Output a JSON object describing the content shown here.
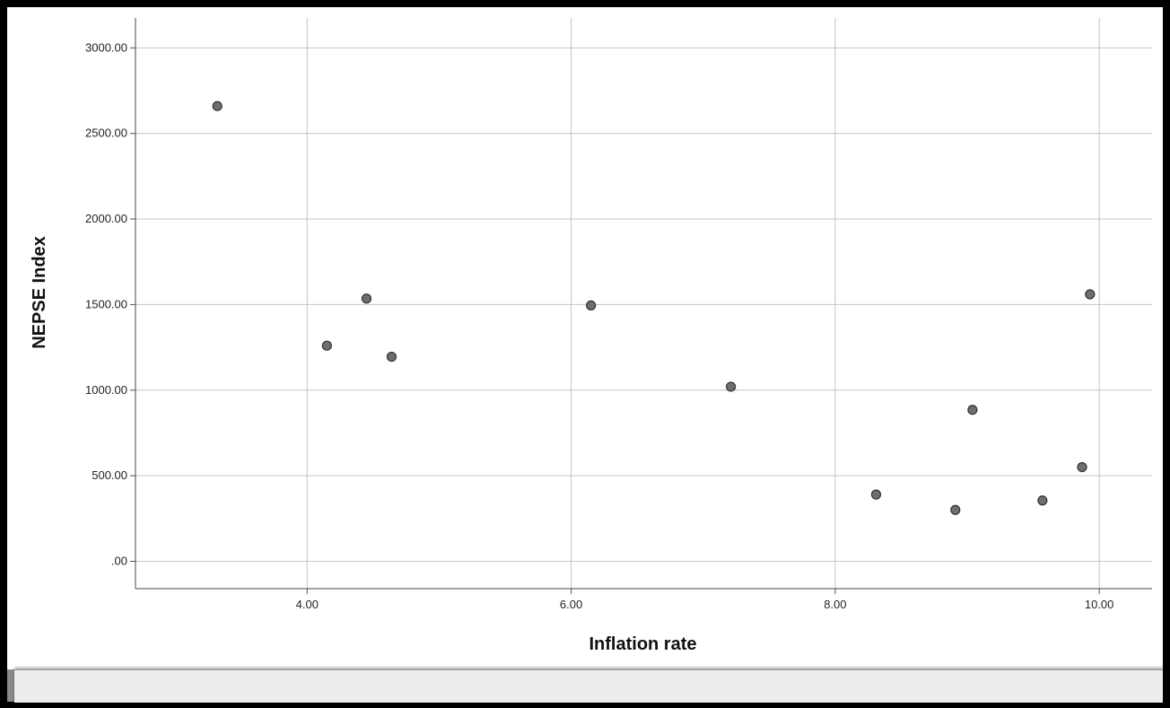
{
  "chart_data": {
    "type": "scatter",
    "title": "",
    "xlabel": "Inflation rate",
    "ylabel": "NEPSE Index",
    "xlim": [
      2.7,
      10.4
    ],
    "ylim": [
      -160,
      3175
    ],
    "xticks": [
      4,
      6,
      8,
      10
    ],
    "xtick_labels": [
      "4.00",
      "6.00",
      "8.00",
      "10.00"
    ],
    "yticks": [
      0,
      500,
      1000,
      1500,
      2000,
      2500,
      3000
    ],
    "ytick_labels": [
      ".00",
      "500.00",
      "1000.00",
      "1500.00",
      "2000.00",
      "2500.00",
      "3000.00"
    ],
    "grid": true,
    "legend": "none",
    "marker_color": "#6e6e6e",
    "marker_edge_color": "#333333",
    "points": [
      {
        "x": 3.32,
        "y": 2660
      },
      {
        "x": 4.15,
        "y": 1260
      },
      {
        "x": 4.45,
        "y": 1535
      },
      {
        "x": 4.64,
        "y": 1195
      },
      {
        "x": 6.15,
        "y": 1495
      },
      {
        "x": 7.21,
        "y": 1020
      },
      {
        "x": 8.31,
        "y": 390
      },
      {
        "x": 8.91,
        "y": 300
      },
      {
        "x": 9.04,
        "y": 885
      },
      {
        "x": 9.57,
        "y": 355
      },
      {
        "x": 9.87,
        "y": 550
      },
      {
        "x": 9.93,
        "y": 1560
      }
    ]
  }
}
